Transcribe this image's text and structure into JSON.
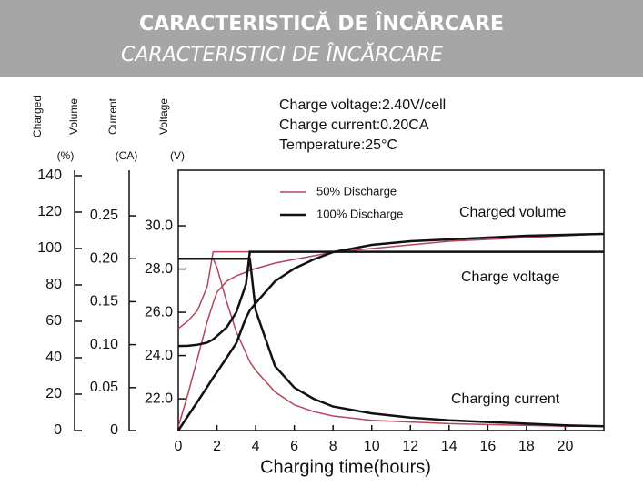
{
  "header": {
    "title": "CARACTERISTICĂ DE ÎNCĂRCARE",
    "subtitle": "CARACTERISTICI DE ÎNCĂRCARE"
  },
  "chart_data": {
    "type": "line",
    "annotations": [
      "Charge voltage:2.40V/cell",
      "Charge current:0.20CA",
      "Temperature:25°C"
    ],
    "curve_labels": {
      "volume": "Charged volume",
      "voltage": "Charge voltage",
      "current": "Charging current"
    },
    "xlabel": "Charging time(hours)",
    "xlim": [
      0,
      22
    ],
    "xticks": [
      0,
      2,
      4,
      6,
      8,
      10,
      12,
      14,
      16,
      18,
      20
    ],
    "axes": {
      "volume": {
        "title_lines": [
          "Charged",
          "Volume"
        ],
        "unit": "(%)",
        "ylim": [
          0,
          143
        ],
        "yticks": [
          0,
          20,
          40,
          60,
          80,
          100,
          120,
          140
        ]
      },
      "current": {
        "title_lines": [
          "Current"
        ],
        "unit": "(CA)",
        "ylim": [
          0,
          0.303
        ],
        "yticks": [
          0,
          0.05,
          {
            "value": 0.1,
            "label": "0.10"
          },
          0.15,
          {
            "value": 0.2,
            "label": "0.20"
          },
          0.25
        ]
      },
      "voltage": {
        "title_lines": [
          "Voltage"
        ],
        "unit": "(V)",
        "ylim": [
          20.53,
          32.57
        ],
        "yticks": [
          {
            "value": 22,
            "label": "22.0"
          },
          {
            "value": 24,
            "label": "24.0"
          },
          {
            "value": 26,
            "label": "26.0"
          },
          {
            "value": 28,
            "label": "28.0"
          },
          {
            "value": 30,
            "label": "30.0"
          }
        ]
      }
    },
    "series": [
      {
        "name": "50% Discharge",
        "color": "#b5455a",
        "x": [
          0,
          0.5,
          1,
          1.5,
          1.8,
          2,
          2.5,
          3,
          3.5,
          3.7,
          4,
          5,
          6,
          7,
          8,
          10,
          12,
          14,
          16,
          18,
          20,
          22
        ],
        "curves": {
          "volume": [
            2,
            20,
            40,
            60,
            70,
            76,
            82,
            85,
            87,
            88,
            89,
            92,
            94,
            96,
            98,
            100,
            102,
            104,
            105,
            106,
            107,
            108
          ],
          "voltage": [
            25.24,
            25.6,
            26.1,
            27.2,
            28.8,
            28.8,
            28.8,
            28.8,
            28.8,
            28.8,
            28.8,
            28.8,
            28.8,
            28.8,
            28.8,
            28.8,
            28.8,
            28.8,
            28.8,
            28.8,
            28.8,
            28.8
          ],
          "current": [
            0.2,
            0.2,
            0.2,
            0.2,
            0.2,
            0.19,
            0.15,
            0.115,
            0.09,
            0.08,
            0.07,
            0.045,
            0.03,
            0.022,
            0.017,
            0.012,
            0.01,
            0.008,
            0.007,
            0.006,
            0.005,
            0.005
          ]
        }
      },
      {
        "name": "100% Discharge",
        "color": "#111111",
        "x": [
          0,
          0.5,
          1,
          1.5,
          1.8,
          2,
          2.5,
          3,
          3.5,
          3.7,
          4,
          5,
          6,
          7,
          8,
          10,
          12,
          14,
          16,
          18,
          20,
          22
        ],
        "curves": {
          "volume": [
            0,
            8,
            16,
            24,
            29,
            32,
            40,
            48,
            62,
            66,
            70,
            82,
            89,
            94,
            98,
            102,
            104,
            105,
            106,
            107,
            107.5,
            108
          ],
          "voltage": [
            24.44,
            24.45,
            24.5,
            24.6,
            24.75,
            24.9,
            25.3,
            26,
            27.3,
            28.8,
            28.8,
            28.8,
            28.8,
            28.8,
            28.8,
            28.8,
            28.8,
            28.8,
            28.8,
            28.8,
            28.8,
            28.8
          ],
          "current": [
            0.2,
            0.2,
            0.2,
            0.2,
            0.2,
            0.2,
            0.2,
            0.2,
            0.2,
            0.2,
            0.14,
            0.075,
            0.05,
            0.037,
            0.028,
            0.02,
            0.015,
            0.012,
            0.01,
            0.008,
            0.006,
            0.005
          ]
        }
      }
    ]
  }
}
